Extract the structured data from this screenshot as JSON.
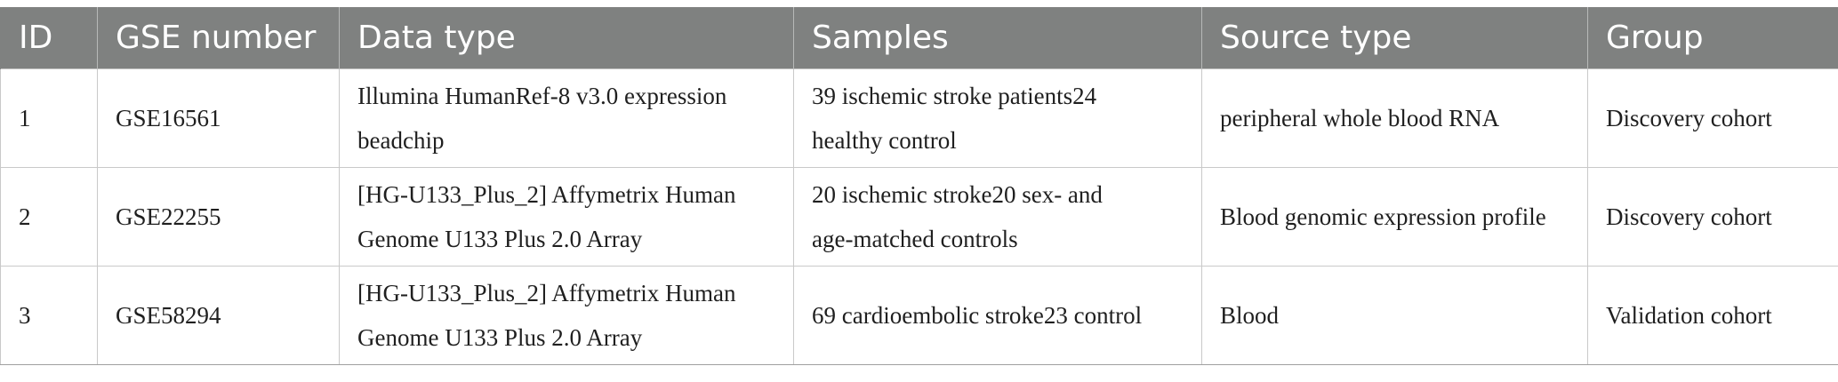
{
  "table": {
    "headers": [
      "ID",
      "GSE number",
      "Data type",
      "Samples",
      "Source type",
      "Group"
    ],
    "rows": [
      {
        "id": "1",
        "gse": "GSE16561",
        "data_type": [
          "Illumina HumanRef-8 v3.0 expression",
          "beadchip"
        ],
        "samples": [
          "39 ischemic stroke patients24",
          "healthy control"
        ],
        "source_type": "peripheral whole blood RNA",
        "group": "Discovery cohort"
      },
      {
        "id": "2",
        "gse": "GSE22255",
        "data_type": [
          "[HG-U133_Plus_2] Affymetrix Human",
          "Genome U133 Plus 2.0 Array"
        ],
        "samples": [
          "20 ischemic stroke20 sex- and",
          "age-matched controls"
        ],
        "source_type": "Blood genomic expression profile",
        "group": "Discovery cohort"
      },
      {
        "id": "3",
        "gse": "GSE58294",
        "data_type": [
          "[HG-U133_Plus_2] Affymetrix Human",
          "Genome U133 Plus 2.0 Array"
        ],
        "samples": [
          "69 cardioembolic stroke23 control"
        ],
        "source_type": "Blood",
        "group": "Validation cohort"
      }
    ]
  }
}
